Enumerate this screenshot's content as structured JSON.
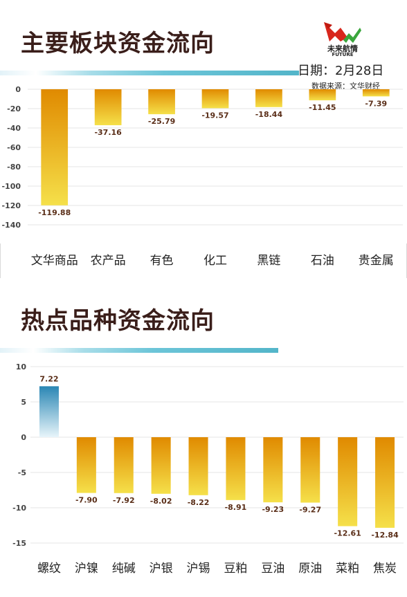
{
  "header": {
    "logo_name": "未来航情",
    "logo_sub": "FUTURE",
    "date": "日期：2月28日",
    "source": "数据来源：文华财经"
  },
  "colors": {
    "negative_top": "#e08a00",
    "negative_bottom": "#f5e04a",
    "positive_top": "#2a86b4",
    "positive_bottom": "#e8f5fa",
    "gridline": "#e6e6e6",
    "title_bar": "#53b5c9"
  },
  "chart_data": [
    {
      "type": "bar",
      "title": "主要板块资金流向",
      "categories": [
        "文华商品",
        "农产品",
        "有色",
        "化工",
        "黑链",
        "石油",
        "贵金属"
      ],
      "values": [
        -119.88,
        -37.16,
        -25.79,
        -19.57,
        -18.44,
        -11.45,
        -7.39
      ],
      "value_labels": [
        "-119.88",
        "-37.16",
        "-25.79",
        "-19.57",
        "-18.44",
        "-11.45",
        "-7.39"
      ],
      "ylim": [
        -140,
        0
      ],
      "yticks": [
        0,
        -20,
        -40,
        -60,
        -80,
        -100,
        -120,
        -140
      ],
      "grid": true,
      "xlabel": "",
      "ylabel": ""
    },
    {
      "type": "bar",
      "title": "热点品种资金流向",
      "categories": [
        "螺纹",
        "沪镍",
        "纯碱",
        "沪银",
        "沪锡",
        "豆粕",
        "豆油",
        "原油",
        "菜粕",
        "焦炭"
      ],
      "values": [
        7.22,
        -7.9,
        -7.92,
        -8.02,
        -8.22,
        -8.91,
        -9.23,
        -9.27,
        -12.61,
        -12.84
      ],
      "value_labels": [
        "7.22",
        "-7.90",
        "-7.92",
        "-8.02",
        "-8.22",
        "-8.91",
        "-9.23",
        "-9.27",
        "-12.61",
        "-12.84"
      ],
      "ylim": [
        -15,
        10
      ],
      "yticks": [
        10,
        5,
        0,
        -5,
        -10,
        -15
      ],
      "grid": true,
      "xlabel": "",
      "ylabel": ""
    }
  ]
}
